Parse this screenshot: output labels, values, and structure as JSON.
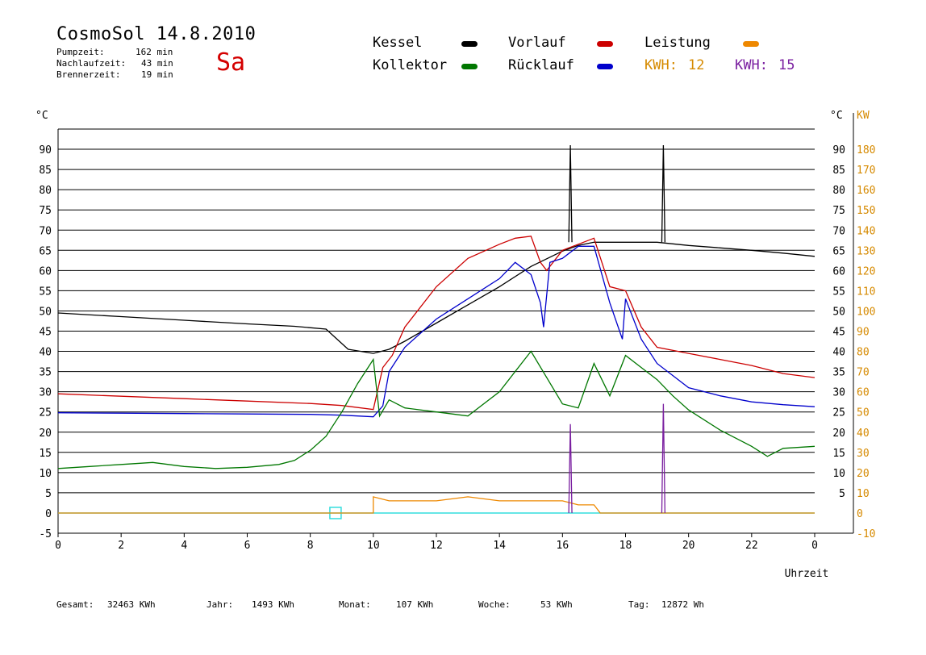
{
  "header": {
    "title": "CosmoSol 14.8.2010",
    "day": "Sa",
    "stats": [
      {
        "label": "Pumpzeit:",
        "value": "162 min"
      },
      {
        "label": "Nachlaufzeit:",
        "value": "43 min"
      },
      {
        "label": "Brennerzeit:",
        "value": "19 min"
      }
    ]
  },
  "legend": {
    "kessel": "Kessel",
    "vorlauf": "Vorlauf",
    "leistung": "Leistung",
    "kollektor": "Kollektor",
    "ruecklauf": "Rücklauf",
    "kwh_orange_label": "KWH:",
    "kwh_orange_value": "12",
    "kwh_purple_label": "KWH:",
    "kwh_purple_value": "15"
  },
  "colors": {
    "kessel": "#000000",
    "vorlauf": "#cc0000",
    "ruecklauf": "#0000cc",
    "kollektor": "#007700",
    "leistung": "#ee8800",
    "kwh_purple": "#7a1fa0",
    "baseline": "#33dddd",
    "axis_right": "#d68a00"
  },
  "footer": {
    "gesamt_label": "Gesamt:",
    "gesamt_value": "32463 KWh",
    "jahr_label": "Jahr:",
    "jahr_value": "1493 KWh",
    "monat_label": "Monat:",
    "monat_value": "107 KWh",
    "woche_label": "Woche:",
    "woche_value": "53 KWh",
    "tag_label": "Tag:",
    "tag_value": "12872 Wh"
  },
  "chart_data": {
    "type": "line",
    "title": "CosmoSol 14.8.2010",
    "xlabel": "Uhrzeit",
    "ylabel_left": "°C",
    "ylabel_right_units": "°C",
    "ylabel_right_power": "KW",
    "xlim": [
      0,
      24
    ],
    "ylim": [
      -5,
      95
    ],
    "ylim_power": [
      -10,
      190
    ],
    "grid": true,
    "x_ticks": [
      "0",
      "2",
      "4",
      "6",
      "8",
      "10",
      "12",
      "14",
      "16",
      "18",
      "20",
      "22",
      "0"
    ],
    "y_ticks_left": [
      "90",
      "85",
      "80",
      "75",
      "70",
      "65",
      "60",
      "55",
      "50",
      "45",
      "40",
      "35",
      "30",
      "25",
      "20",
      "15",
      "10",
      "5",
      "0",
      "-5"
    ],
    "y_ticks_right_c": [
      "90",
      "85",
      "80",
      "75",
      "70",
      "65",
      "60",
      "55",
      "50",
      "45",
      "40",
      "35",
      "30",
      "25",
      "20",
      "15",
      "10",
      "5"
    ],
    "y_ticks_right_kw": [
      "180",
      "170",
      "160",
      "150",
      "140",
      "130",
      "120",
      "110",
      "100",
      "90",
      "80",
      "70",
      "60",
      "50",
      "40",
      "30",
      "20",
      "10",
      "0",
      "-10"
    ],
    "series": [
      {
        "name": "Kessel",
        "key": "kessel",
        "x": [
          0,
          2,
          4,
          6,
          7.5,
          8.5,
          9.2,
          10,
          10.5,
          11,
          12,
          13,
          14,
          15,
          16,
          16.5,
          17,
          18,
          19,
          20,
          21,
          22,
          23,
          24
        ],
        "y": [
          49.5,
          48.6,
          47.7,
          46.8,
          46.2,
          45.5,
          40.5,
          39.5,
          40.5,
          42.5,
          47,
          51.5,
          56,
          61,
          64.8,
          66.2,
          67,
          67,
          67,
          66.2,
          65.6,
          65,
          64.3,
          63.5
        ]
      },
      {
        "name": "Vorlauf",
        "key": "vorlauf",
        "x": [
          0,
          2,
          4,
          6,
          8,
          9,
          10,
          10.3,
          10.6,
          11,
          12,
          13,
          14,
          14.5,
          15,
          15.3,
          15.5,
          16,
          16.5,
          17,
          17.5,
          18,
          18.5,
          19,
          20,
          21,
          22,
          23,
          24
        ],
        "y": [
          29.5,
          28.9,
          28.3,
          27.7,
          27.1,
          26.6,
          25.6,
          36,
          39,
          46,
          56,
          63,
          66.5,
          68,
          68.5,
          62,
          60,
          65,
          66.5,
          68,
          56,
          55,
          46,
          41,
          39.5,
          38,
          36.5,
          34.5,
          33.5
        ]
      },
      {
        "name": "Rücklauf",
        "key": "ruecklauf",
        "x": [
          0,
          2,
          4,
          6,
          8,
          9,
          10,
          10.3,
          10.5,
          11,
          12,
          13,
          14,
          14.5,
          15,
          15.3,
          15.4,
          15.6,
          16,
          16.5,
          17,
          17.5,
          17.9,
          18,
          18.5,
          19,
          20,
          21,
          22,
          23,
          24
        ],
        "y": [
          24.8,
          24.7,
          24.6,
          24.5,
          24.4,
          24.2,
          23.8,
          26.5,
          35,
          41,
          48,
          53,
          58,
          62,
          59,
          52,
          46,
          62,
          63,
          66,
          66,
          52,
          43,
          53,
          43,
          37,
          31,
          29,
          27.5,
          26.8,
          26.3
        ]
      },
      {
        "name": "Kollektor",
        "key": "kollektor",
        "x": [
          0,
          1,
          2,
          3,
          4,
          5,
          6,
          7,
          7.5,
          8,
          8.5,
          9,
          9.5,
          10,
          10.2,
          10.5,
          11,
          12,
          13,
          14,
          15,
          16,
          16.5,
          17,
          17.5,
          18,
          18.5,
          19,
          19.5,
          20,
          21,
          22,
          22.5,
          23,
          24
        ],
        "y": [
          11,
          11.5,
          12,
          12.5,
          11.5,
          11,
          11.3,
          12,
          13,
          15.5,
          19,
          25,
          32,
          38,
          24,
          28,
          26,
          25,
          24,
          30,
          40,
          27,
          26,
          37,
          29,
          39,
          36,
          33,
          29,
          25.5,
          20.5,
          16.5,
          14,
          16,
          16.5
        ]
      },
      {
        "name": "Leistung",
        "key": "leistung",
        "x": [
          0,
          10,
          10,
          10.5,
          11,
          12,
          13,
          14,
          15,
          16,
          16.5,
          17,
          17.2,
          24
        ],
        "y": [
          0,
          0,
          4,
          3,
          3,
          3,
          4,
          3,
          3,
          3,
          2,
          2,
          0,
          0
        ]
      }
    ],
    "spikes": [
      {
        "series": "Kessel",
        "x": 16.25,
        "peak": 91,
        "base": 67
      },
      {
        "series": "Kessel",
        "x": 19.2,
        "peak": 91,
        "base": 67
      },
      {
        "series": "Leistung",
        "x": 16.25,
        "peak": 22,
        "base": 0
      },
      {
        "series": "Leistung",
        "x": 19.2,
        "peak": 27,
        "base": 0
      }
    ],
    "marker": {
      "x": 8.8,
      "y": 0
    }
  }
}
